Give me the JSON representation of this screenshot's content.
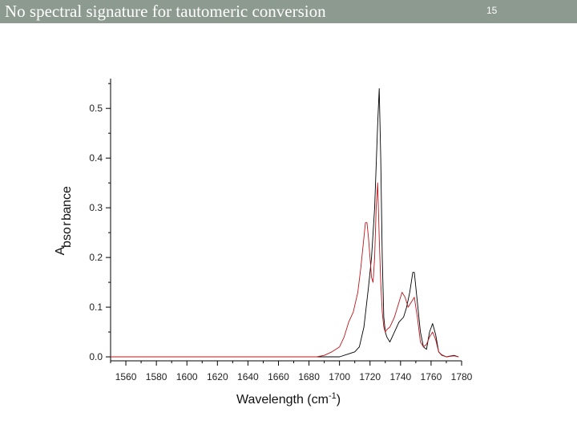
{
  "slide": {
    "title": "No spectral signature for tautomeric conversion",
    "number": "15"
  },
  "colors": {
    "title_bar": "#8d9a8f",
    "series_black": "#000000",
    "series_red": "#c0161c"
  },
  "chart_data": {
    "type": "line",
    "title": "",
    "xlabel": "Wavelength (cm",
    "xlabel_superscript": "-1",
    "xlabel_suffix": ")",
    "ylabel": "Absorbance",
    "xlim": [
      1550,
      1780
    ],
    "ylim": [
      -0.008,
      0.56
    ],
    "xticks": [
      1560,
      1580,
      1600,
      1620,
      1640,
      1660,
      1680,
      1700,
      1720,
      1740,
      1760,
      1780
    ],
    "yticks": [
      0.0,
      0.1,
      0.2,
      0.3,
      0.4,
      0.5
    ],
    "ytick_labels": [
      "0.0",
      "0.1",
      "0.2",
      "0.3",
      "0.4",
      "0.5"
    ],
    "series": [
      {
        "color": "#000000",
        "x": [
          1550,
          1600,
          1650,
          1685,
          1695,
          1700,
          1705,
          1710,
          1713,
          1716,
          1719,
          1721,
          1723,
          1725,
          1726,
          1727,
          1728,
          1729,
          1730,
          1731,
          1733,
          1736,
          1739,
          1742,
          1744,
          1746,
          1748,
          1749,
          1751,
          1753,
          1755,
          1757,
          1759,
          1761,
          1763,
          1765,
          1767,
          1770,
          1775,
          1778
        ],
        "y": [
          0.0,
          0.0,
          0.0,
          0.0,
          0.0,
          0.0,
          0.005,
          0.01,
          0.02,
          0.06,
          0.14,
          0.2,
          0.3,
          0.47,
          0.54,
          0.4,
          0.2,
          0.08,
          0.05,
          0.04,
          0.03,
          0.05,
          0.07,
          0.08,
          0.1,
          0.13,
          0.17,
          0.17,
          0.11,
          0.05,
          0.02,
          0.015,
          0.05,
          0.067,
          0.045,
          0.01,
          0.004,
          0.0,
          0.003,
          0.0
        ]
      },
      {
        "color": "#c0161c",
        "x": [
          1550,
          1600,
          1650,
          1685,
          1690,
          1695,
          1700,
          1703,
          1706,
          1709,
          1712,
          1714,
          1716,
          1717,
          1718,
          1719,
          1720,
          1721,
          1722,
          1723,
          1724,
          1725,
          1726,
          1727,
          1728,
          1729,
          1730,
          1731,
          1733,
          1736,
          1739,
          1741,
          1743,
          1745,
          1747,
          1749,
          1751,
          1753,
          1755,
          1757,
          1759,
          1761,
          1763,
          1765,
          1767,
          1770,
          1775,
          1778
        ],
        "y": [
          0.0,
          0.0,
          0.0,
          0.0,
          0.003,
          0.01,
          0.02,
          0.04,
          0.07,
          0.09,
          0.13,
          0.18,
          0.24,
          0.27,
          0.27,
          0.24,
          0.2,
          0.16,
          0.15,
          0.2,
          0.3,
          0.35,
          0.24,
          0.15,
          0.09,
          0.06,
          0.05,
          0.055,
          0.06,
          0.08,
          0.11,
          0.13,
          0.12,
          0.1,
          0.11,
          0.12,
          0.08,
          0.03,
          0.02,
          0.025,
          0.04,
          0.05,
          0.035,
          0.01,
          0.003,
          0.0,
          0.002,
          0.0
        ]
      }
    ],
    "grid": false,
    "legend": "none"
  }
}
